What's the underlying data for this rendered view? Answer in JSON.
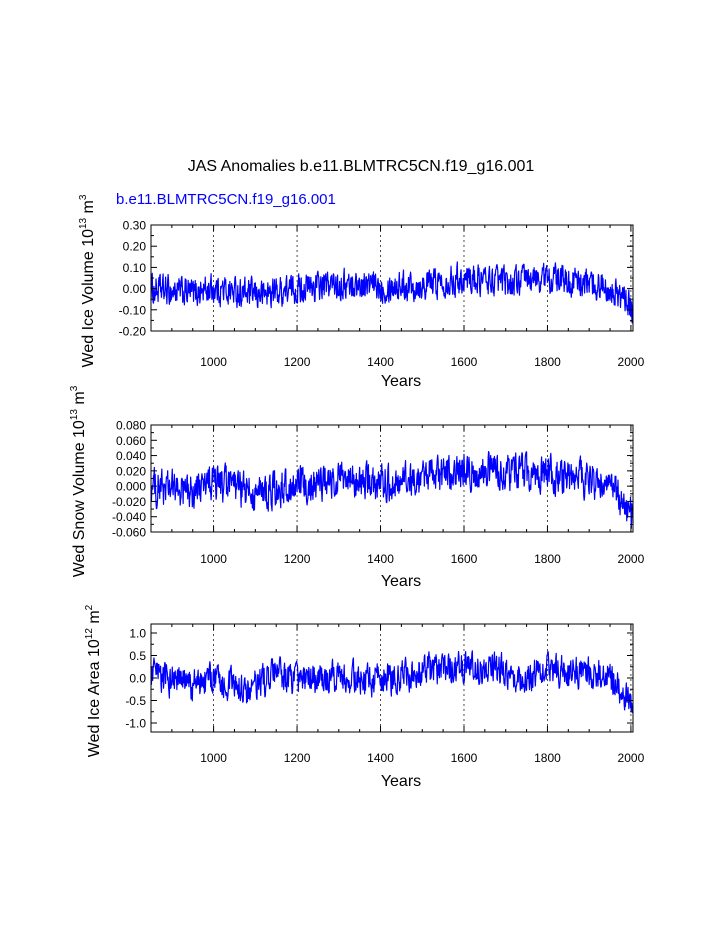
{
  "figure": {
    "title": "JAS Anomalies b.e11.BLMTRC5CN.f19_g16.001",
    "legend_label": "b.e11.BLMTRC5CN.f19_g16.001",
    "series_color": "#0000ff"
  },
  "chart_data": [
    {
      "type": "line",
      "title": "",
      "ylabel": "Wed Ice Volume 10",
      "ylabel_exp": "13",
      "ylabel_unit": " m",
      "ylabel_unit_exp": "3",
      "xlabel": "Years",
      "xlim": [
        850,
        2005
      ],
      "ylim": [
        -0.2,
        0.3
      ],
      "yticks": [
        -0.2,
        -0.1,
        0.0,
        0.1,
        0.2,
        0.3
      ],
      "ytick_labels": [
        "-0.20",
        "-0.10",
        "0.00",
        "0.10",
        "0.20",
        "0.30"
      ],
      "xticks": [
        1000,
        1200,
        1400,
        1600,
        1800,
        2000
      ],
      "xtick_labels": [
        "1000",
        "1200",
        "1400",
        "1600",
        "1800",
        "2000"
      ],
      "grid": "vertical dashed at x ticks",
      "series": [
        {
          "name": "b.e11.BLMTRC5CN.f19_g16.001",
          "x_start": 850,
          "x_end": 2005,
          "noise_amplitude": 0.05,
          "approx_range": [
            -0.17,
            0.19
          ],
          "trend": [
            [
              850,
              -0.005
            ],
            [
              950,
              -0.02
            ],
            [
              1000,
              0.0
            ],
            [
              1100,
              -0.03
            ],
            [
              1200,
              0.0
            ],
            [
              1300,
              0.02
            ],
            [
              1400,
              0.01
            ],
            [
              1500,
              0.02
            ],
            [
              1600,
              0.05
            ],
            [
              1700,
              0.03
            ],
            [
              1800,
              0.05
            ],
            [
              1900,
              0.02
            ],
            [
              1950,
              0.01
            ],
            [
              2005,
              -0.1
            ]
          ]
        }
      ]
    },
    {
      "type": "line",
      "title": "",
      "ylabel": "Wed Snow Volume 10",
      "ylabel_exp": "13",
      "ylabel_unit": " m",
      "ylabel_unit_exp": "3",
      "xlabel": "Years",
      "xlim": [
        850,
        2005
      ],
      "ylim": [
        -0.06,
        0.08
      ],
      "yticks": [
        -0.06,
        -0.04,
        -0.02,
        0.0,
        0.02,
        0.04,
        0.06,
        0.08
      ],
      "ytick_labels": [
        "-0.060",
        "-0.040",
        "-0.020",
        "0.000",
        "0.020",
        "0.040",
        "0.060",
        "0.080"
      ],
      "xticks": [
        1000,
        1200,
        1400,
        1600,
        1800,
        2000
      ],
      "xtick_labels": [
        "1000",
        "1200",
        "1400",
        "1600",
        "1800",
        "2000"
      ],
      "grid": "vertical dashed at x ticks",
      "series": [
        {
          "name": "b.e11.BLMTRC5CN.f19_g16.001",
          "x_start": 850,
          "x_end": 2005,
          "noise_amplitude": 0.017,
          "approx_range": [
            -0.058,
            0.068
          ],
          "trend": [
            [
              850,
              0.0
            ],
            [
              950,
              -0.008
            ],
            [
              1000,
              0.005
            ],
            [
              1100,
              -0.01
            ],
            [
              1200,
              0.0
            ],
            [
              1300,
              0.008
            ],
            [
              1400,
              0.004
            ],
            [
              1500,
              0.01
            ],
            [
              1600,
              0.02
            ],
            [
              1700,
              0.018
            ],
            [
              1800,
              0.015
            ],
            [
              1900,
              0.008
            ],
            [
              1950,
              0.005
            ],
            [
              2005,
              -0.04
            ]
          ]
        }
      ]
    },
    {
      "type": "line",
      "title": "",
      "ylabel": "Wed Ice Area 10",
      "ylabel_exp": "12",
      "ylabel_unit": " m",
      "ylabel_unit_exp": "2",
      "xlabel": "Years",
      "xlim": [
        850,
        2005
      ],
      "ylim": [
        -1.2,
        1.2
      ],
      "yticks": [
        -1.0,
        -0.5,
        0.0,
        0.5,
        1.0
      ],
      "ytick_labels": [
        "-1.0",
        "-0.5",
        "0.0",
        "0.5",
        "1.0"
      ],
      "xticks": [
        1000,
        1200,
        1400,
        1600,
        1800,
        2000
      ],
      "xtick_labels": [
        "1000",
        "1200",
        "1400",
        "1600",
        "1800",
        "2000"
      ],
      "grid": "vertical dashed at x ticks",
      "series": [
        {
          "name": "b.e11.BLMTRC5CN.f19_g16.001",
          "x_start": 850,
          "x_end": 2005,
          "noise_amplitude": 0.25,
          "approx_range": [
            -0.8,
            0.95
          ],
          "trend": [
            [
              850,
              0.05
            ],
            [
              950,
              -0.15
            ],
            [
              1000,
              0.0
            ],
            [
              1080,
              -0.3
            ],
            [
              1150,
              0.1
            ],
            [
              1200,
              -0.05
            ],
            [
              1300,
              0.05
            ],
            [
              1400,
              -0.05
            ],
            [
              1500,
              0.15
            ],
            [
              1600,
              0.25
            ],
            [
              1700,
              0.15
            ],
            [
              1750,
              0.0
            ],
            [
              1800,
              0.2
            ],
            [
              1900,
              0.1
            ],
            [
              1950,
              0.05
            ],
            [
              2005,
              -0.7
            ]
          ]
        }
      ]
    }
  ]
}
